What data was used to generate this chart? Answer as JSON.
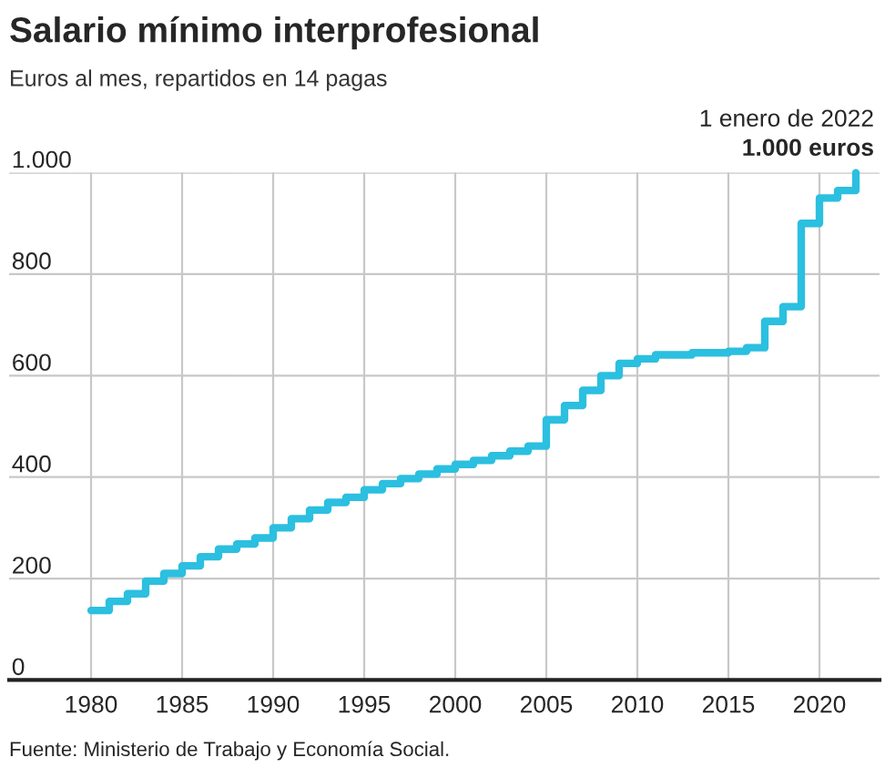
{
  "chart_data": {
    "type": "step",
    "title": "Salario mínimo interprofesional",
    "subtitle": "Euros al mes, repartidos en 14 pagas",
    "x": [
      1980,
      1981,
      1982,
      1983,
      1984,
      1985,
      1986,
      1987,
      1988,
      1989,
      1990,
      1991,
      1992,
      1993,
      1994,
      1995,
      1996,
      1997,
      1998,
      1999,
      2000,
      2001,
      2002,
      2003,
      2004,
      2005,
      2006,
      2007,
      2008,
      2009,
      2010,
      2011,
      2012,
      2013,
      2014,
      2015,
      2016,
      2017,
      2018,
      2019,
      2020,
      2021,
      2022
    ],
    "series": [
      {
        "color": "#2bbfe0",
        "values": [
          137,
          155,
          170,
          195,
          210,
          225,
          243,
          258,
          268,
          280,
          300,
          318,
          335,
          350,
          360,
          375,
          387,
          397,
          406,
          416,
          425,
          433,
          442,
          451,
          461,
          513,
          541,
          571,
          600,
          624,
          633,
          641,
          641,
          645,
          645,
          648,
          655,
          707,
          736,
          900,
          950,
          965,
          1000
        ]
      }
    ],
    "xlim": [
      1975.5,
      2023.3
    ],
    "ylim": [
      0,
      1000
    ],
    "xticks": [
      1980,
      1985,
      1990,
      1995,
      2000,
      2005,
      2010,
      2015,
      2020
    ],
    "yticks": [
      0,
      200,
      400,
      600,
      800,
      {
        "value": 1000,
        "label": "1.000"
      }
    ],
    "grid": true,
    "line_style": "solid",
    "marker": "none",
    "annotations": [
      "1 enero de 2022",
      "1.000 euros",
      "Fuente: Ministerio de Trabajo y Economía Social."
    ]
  }
}
